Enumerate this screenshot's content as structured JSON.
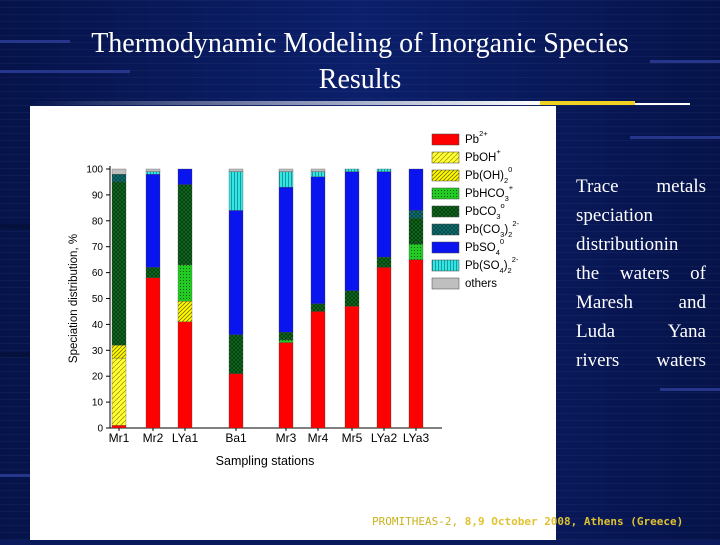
{
  "slide": {
    "title_line1": "Thermodynamic Modeling of Inorganic Species",
    "title_line2": "Results",
    "side_text_lines": [
      "Trace metals",
      "speciation",
      "distributionin",
      "the waters of",
      "Maresh and",
      "Luda Yana",
      "rivers waters"
    ],
    "footer_part1": "PROMITHEAS-2, ",
    "footer_part2": "8,9 October 2008, Athens (Greece)",
    "colors": {
      "background": "#0a1a5c",
      "accent_yellow": "#f0d020",
      "footer_text": "#c9b21e"
    }
  },
  "chart_data": {
    "type": "bar",
    "stacked": true,
    "xlabel": "Sampling stations",
    "ylabel": "Speciation distribution, %",
    "ylim": [
      0,
      100
    ],
    "yticks": [
      0,
      10,
      20,
      30,
      40,
      50,
      60,
      70,
      80,
      90,
      100
    ],
    "categories": [
      "Mr1",
      "Mr2",
      "LYa1",
      "Ba1",
      "Mr3",
      "Mr4",
      "Mr5",
      "LYa2",
      "LYa3"
    ],
    "legend_position": "right",
    "series": [
      {
        "key": "pb2",
        "name": "Pb2+",
        "base": "Pb",
        "sup": "2+",
        "sub": "",
        "color": "#ff0000",
        "pattern": "solid",
        "values": [
          1,
          58,
          41,
          21,
          33,
          45,
          47,
          62,
          65
        ]
      },
      {
        "key": "pboh",
        "name": "PbOH+",
        "base": "PbOH",
        "sup": "+",
        "sub": "",
        "color": "#ffff33",
        "pattern": "hatch",
        "values": [
          26,
          0,
          0,
          0,
          0,
          0,
          0,
          0,
          0
        ]
      },
      {
        "key": "pboh2",
        "name": "Pb(OH)2 0",
        "base": "Pb(OH)",
        "sup": "0",
        "sub": "2",
        "color": "#ffff00",
        "pattern": "hatch2",
        "values": [
          5,
          0,
          8,
          0,
          0,
          0,
          0,
          0,
          0
        ]
      },
      {
        "key": "pbhco3",
        "name": "PbHCO3 +",
        "base": "PbHCO",
        "sup": "+",
        "sub": "3",
        "color": "#22cc22",
        "pattern": "dots",
        "values": [
          0,
          0,
          14,
          0,
          1,
          0,
          0,
          0,
          6
        ]
      },
      {
        "key": "pbco3",
        "name": "PbCO3 0",
        "base": "PbCO",
        "sup": "o",
        "sub": "3",
        "color": "#0e6e1e",
        "pattern": "cross",
        "values": [
          63,
          4,
          31,
          15,
          3,
          3,
          6,
          4,
          10
        ]
      },
      {
        "key": "pbco32",
        "name": "Pb(CO3)2 2-",
        "base": "Pb(CO",
        "sup": "2-",
        "sub": "3",
        "tail": ")",
        "tailsub": "2",
        "color": "#117777",
        "pattern": "cross",
        "values": [
          3,
          0,
          0,
          0,
          0,
          0,
          0,
          0,
          3
        ]
      },
      {
        "key": "pbso4",
        "name": "PbSO4 0",
        "base": "PbSO",
        "sup": "0",
        "sub": "4",
        "color": "#0a14ee",
        "pattern": "solid",
        "values": [
          0,
          36,
          6,
          48,
          56,
          49,
          46,
          33,
          16
        ]
      },
      {
        "key": "pbso42",
        "name": "Pb(SO4)2 2-",
        "base": "Pb(SO",
        "sup": "2-",
        "sub": "4",
        "tail": ")",
        "tailsub": "2",
        "color": "#33e6e6",
        "pattern": "stripes",
        "values": [
          0,
          1,
          0,
          15,
          6,
          2,
          1,
          1,
          0
        ]
      },
      {
        "key": "others",
        "name": "others",
        "base": "others",
        "sup": "",
        "sub": "",
        "color": "#bfbfbf",
        "pattern": "solid",
        "values": [
          2,
          1,
          0,
          1,
          1,
          1,
          0,
          0,
          0
        ]
      }
    ]
  }
}
